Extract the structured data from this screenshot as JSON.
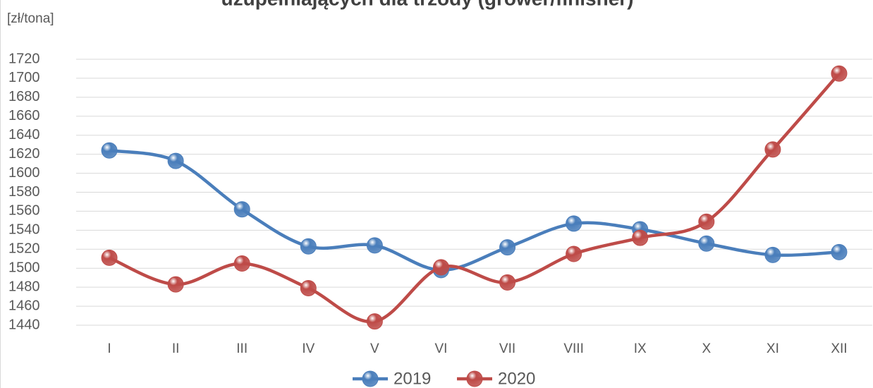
{
  "chart_data": {
    "type": "line",
    "title": "uzupełniających dla trzody (grower/finisher)",
    "y_label": "[zł/tona]",
    "categories": [
      "I",
      "II",
      "III",
      "IV",
      "V",
      "VI",
      "VII",
      "VIII",
      "IX",
      "X",
      "XI",
      "XII"
    ],
    "series": [
      {
        "name": "2019",
        "color": "#4a7ebb",
        "values": [
          1624,
          1613,
          1562,
          1523,
          1524,
          1498,
          1522,
          1547,
          1541,
          1526,
          1514,
          1517
        ]
      },
      {
        "name": "2020",
        "color": "#be4b48",
        "values": [
          1511,
          1483,
          1505,
          1479,
          1444,
          1501,
          1485,
          1515,
          1532,
          1549,
          1625,
          1705
        ]
      }
    ],
    "ylim": [
      1440,
      1720
    ],
    "yticks": [
      1440,
      1460,
      1480,
      1500,
      1520,
      1540,
      1560,
      1580,
      1600,
      1620,
      1640,
      1660,
      1680,
      1700,
      1720
    ],
    "grid": true,
    "smooth": true,
    "legend": "bottom"
  }
}
